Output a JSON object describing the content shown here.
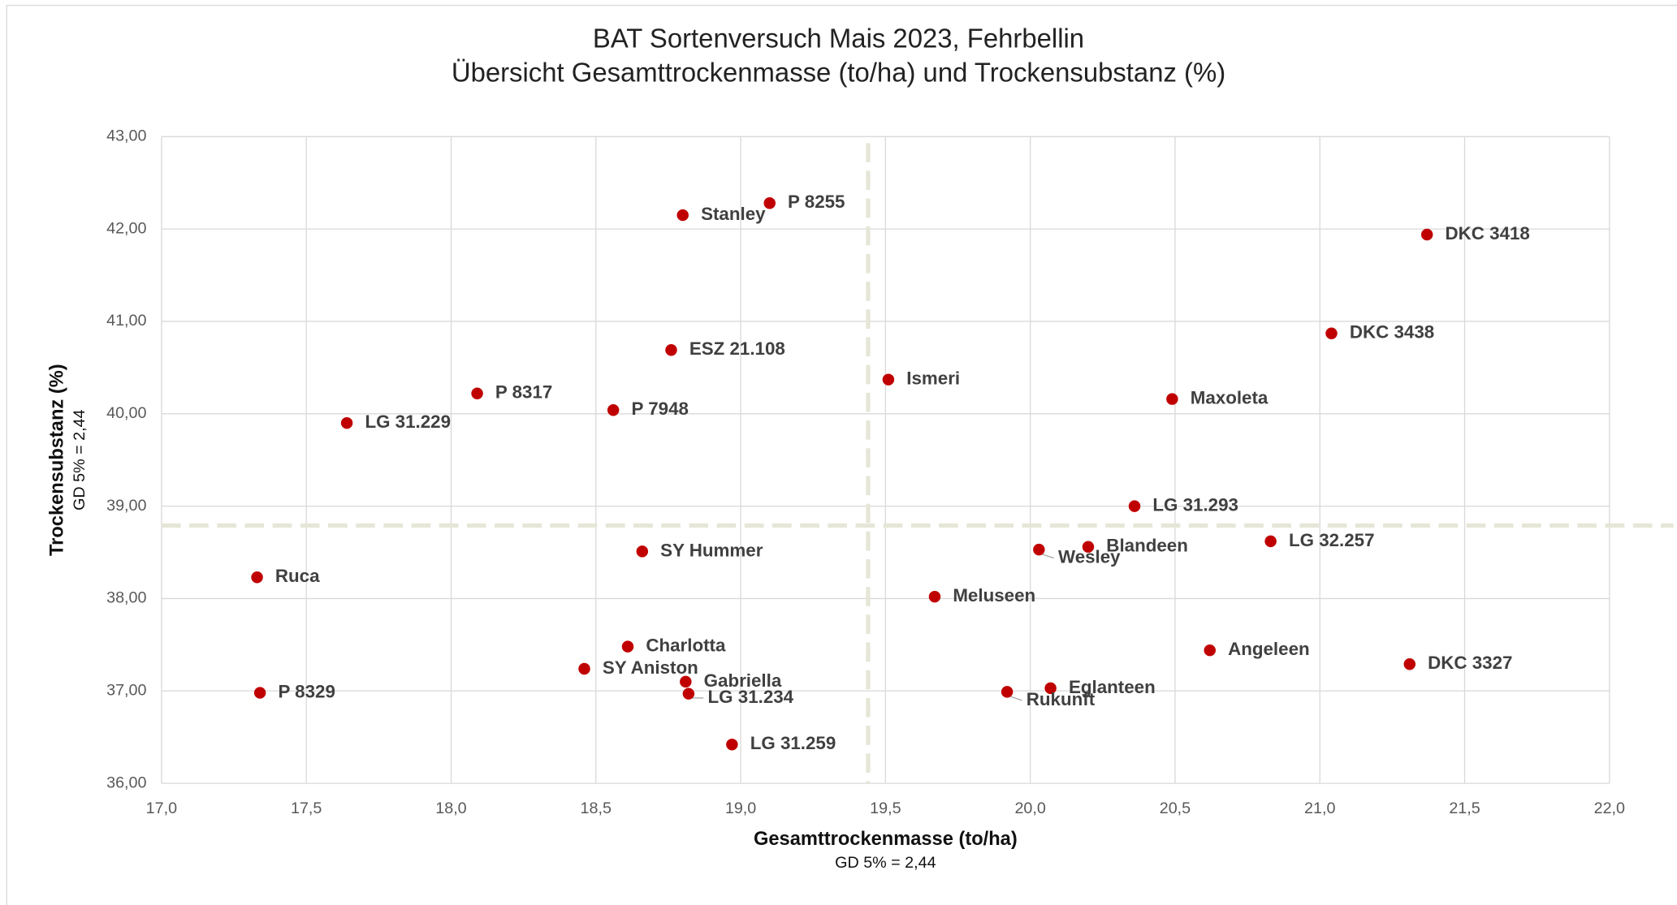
{
  "chart_data": {
    "type": "scatter",
    "title": "BAT Sortenversuch Mais 2023, Fehrbellin",
    "subtitle": "Übersicht Gesamttrockenmasse (to/ha) und Trockensubstanz (%)",
    "x_label": "Gesamttrockenmasse (to/ha)",
    "x_note": "GD 5% = 2,44",
    "y_label": "Trockensubstanz (%)",
    "y_note": "GD 5% = 2,44",
    "color": "#c00000",
    "grid": true,
    "labels": [
      "P 8255",
      "Stanley",
      "DKC 3418",
      "DKC 3438",
      "ESZ 21.108",
      "Ismeri",
      "P 8317",
      "Maxoleta",
      "P 7948",
      "LG 31.229",
      "LG 31.293",
      "LG 32.257",
      "Blandeen",
      "Wesley",
      "SY Hummer",
      "Ruca",
      "Meluseen",
      "Charlotta",
      "Angeleen",
      "DKC 3327",
      "SY Aniston",
      "Gabriella",
      "Eglanteen",
      "Rukunft",
      "P 8329",
      "LG 31.234",
      "LG 31.259"
    ],
    "x": [
      19.1,
      18.8,
      21.37,
      21.04,
      18.76,
      19.51,
      18.09,
      20.49,
      18.56,
      17.64,
      20.36,
      20.83,
      20.2,
      20.03,
      18.66,
      17.33,
      19.67,
      18.61,
      20.62,
      21.31,
      18.46,
      18.81,
      20.07,
      19.92,
      17.34,
      18.82,
      18.97
    ],
    "y": [
      42.28,
      42.15,
      41.94,
      40.87,
      40.69,
      40.37,
      40.22,
      40.16,
      40.04,
      39.9,
      39.0,
      38.62,
      38.56,
      38.53,
      38.51,
      38.23,
      38.02,
      37.48,
      37.44,
      37.29,
      37.24,
      37.1,
      37.03,
      36.99,
      36.98,
      36.97,
      36.42
    ],
    "reference_lines": {
      "x": 19.44,
      "y": 38.79,
      "color": "#e6e6d8"
    },
    "xlim": [
      17.0,
      22.0
    ],
    "xticks": [
      {
        "value": 17.0,
        "label": "17,0"
      },
      {
        "value": 17.5,
        "label": "17,5"
      },
      {
        "value": 18.0,
        "label": "18,0"
      },
      {
        "value": 18.5,
        "label": "18,5"
      },
      {
        "value": 19.0,
        "label": "19,0"
      },
      {
        "value": 19.5,
        "label": "19,5"
      },
      {
        "value": 20.0,
        "label": "20,0"
      },
      {
        "value": 20.5,
        "label": "20,5"
      },
      {
        "value": 21.0,
        "label": "21,0"
      },
      {
        "value": 21.5,
        "label": "21,5"
      },
      {
        "value": 22.0,
        "label": "22,0"
      }
    ],
    "ylim": [
      36,
      43
    ],
    "yticks": [
      {
        "value": 36,
        "label": "36,00"
      },
      {
        "value": 37,
        "label": "37,00"
      },
      {
        "value": 38,
        "label": "38,00"
      },
      {
        "value": 39,
        "label": "39,00"
      },
      {
        "value": 40,
        "label": "40,00"
      },
      {
        "value": 41,
        "label": "41,00"
      },
      {
        "value": 42,
        "label": "42,00"
      },
      {
        "value": 43,
        "label": "43,00"
      }
    ]
  }
}
